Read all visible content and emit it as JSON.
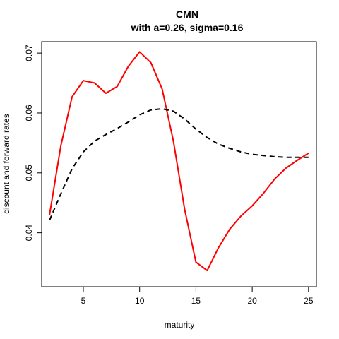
{
  "chart_data": {
    "type": "line",
    "title": "CMN",
    "subtitle": "with  a=0.26, sigma=0.16",
    "xlabel": "maturity",
    "ylabel": "discount and forward rates",
    "xlim": [
      1.3,
      25.7
    ],
    "ylim": [
      0.031,
      0.0719
    ],
    "x_ticks": [
      5,
      10,
      15,
      20,
      25
    ],
    "y_ticks": [
      0.04,
      0.05,
      0.06,
      0.07
    ],
    "y_tick_labels": [
      "0.04",
      "0.05",
      "0.06",
      "0.07"
    ],
    "grid": false,
    "series": [
      {
        "color": "#ff0000",
        "line_style": "solid",
        "x": [
          2,
          3,
          4,
          5,
          6,
          7,
          8,
          9,
          10,
          11,
          12,
          13,
          14,
          15,
          16,
          17,
          18,
          19,
          20,
          21,
          22,
          23,
          24,
          25
        ],
        "values": [
          0.043,
          0.0545,
          0.0627,
          0.0654,
          0.065,
          0.0633,
          0.0644,
          0.0678,
          0.0702,
          0.0684,
          0.064,
          0.0553,
          0.0439,
          0.0351,
          0.0337,
          0.0375,
          0.0406,
          0.0428,
          0.0445,
          0.0466,
          0.049,
          0.0508,
          0.0521,
          0.0533
        ]
      },
      {
        "color": "#000000",
        "line_style": "dashed",
        "x": [
          2,
          3,
          4,
          5,
          6,
          7,
          8,
          9,
          10,
          11,
          12,
          13,
          14,
          15,
          16,
          17,
          18,
          19,
          20,
          21,
          22,
          23,
          24,
          25
        ],
        "values": [
          0.0421,
          0.0465,
          0.0507,
          0.0535,
          0.0553,
          0.0564,
          0.0574,
          0.0585,
          0.0597,
          0.0605,
          0.0607,
          0.0603,
          0.059,
          0.0573,
          0.0559,
          0.0548,
          0.0541,
          0.0535,
          0.0531,
          0.0529,
          0.0527,
          0.0526,
          0.0526,
          0.0526
        ]
      }
    ]
  }
}
